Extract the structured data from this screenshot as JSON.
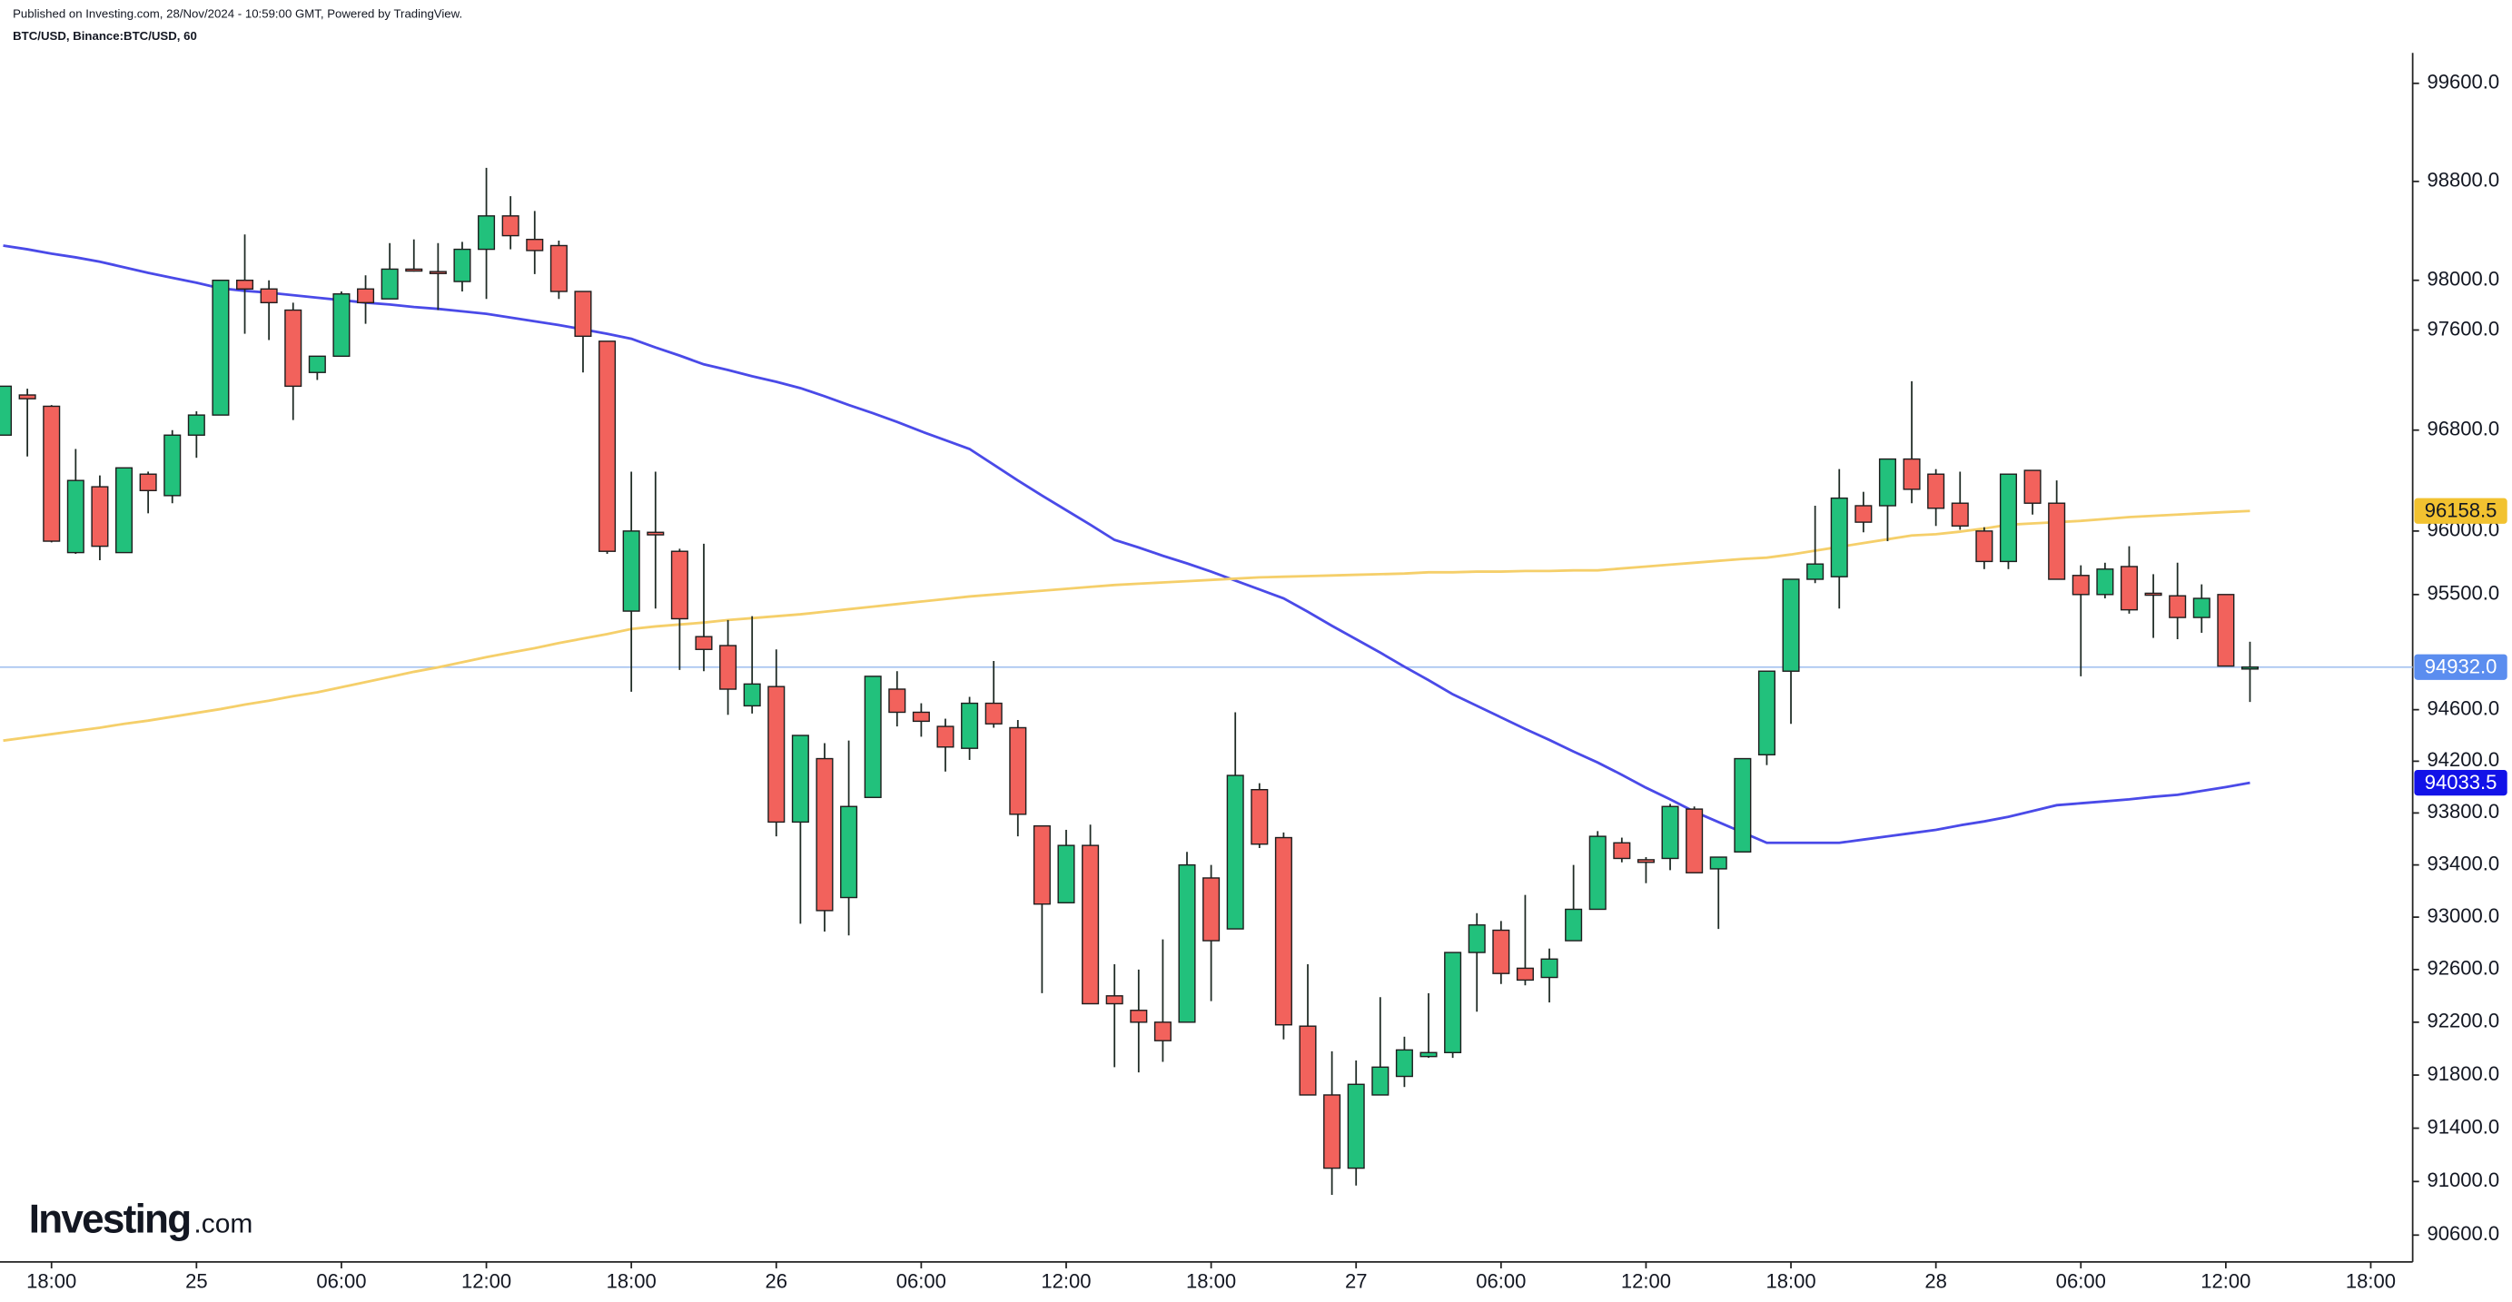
{
  "header": {
    "published": "Published on Investing.com, 28/Nov/2024 - 10:59:00 GMT, Powered by TradingView.",
    "symbol": "BTC/USD, Binance:BTC/USD, 60"
  },
  "logo": {
    "brand": "Investing",
    "suffix": ".com"
  },
  "chart_data": {
    "type": "candlestick",
    "log": true,
    "grid": false,
    "up_color": "#22c17c",
    "down_color": "#f2625c",
    "ylim": [
      90400,
      99850
    ],
    "yticks": [
      {
        "value": 90600,
        "label": "90600.0"
      },
      {
        "value": 91000,
        "label": "91000.0"
      },
      {
        "value": 91400,
        "label": "91400.0"
      },
      {
        "value": 91800,
        "label": "91800.0"
      },
      {
        "value": 92200,
        "label": "92200.0"
      },
      {
        "value": 92600,
        "label": "92600.0"
      },
      {
        "value": 93000,
        "label": "93000.0"
      },
      {
        "value": 93400,
        "label": "93400.0"
      },
      {
        "value": 93800,
        "label": "93800.0"
      },
      {
        "value": 94200,
        "label": "94200.0"
      },
      {
        "value": 94600,
        "label": "94600.0"
      },
      {
        "value": 95500,
        "label": "95500.0"
      },
      {
        "value": 96000,
        "label": "96000.0"
      },
      {
        "value": 96800,
        "label": "96800.0"
      },
      {
        "value": 97600,
        "label": "97600.0"
      },
      {
        "value": 98000,
        "label": "98000.0"
      },
      {
        "value": 98800,
        "label": "98800.0"
      },
      {
        "value": 99600,
        "label": "99600.0"
      }
    ],
    "categories": [
      null,
      null,
      "18:00",
      null,
      null,
      null,
      null,
      null,
      "25",
      null,
      null,
      null,
      null,
      null,
      "06:00",
      null,
      null,
      null,
      null,
      null,
      "12:00",
      null,
      null,
      null,
      null,
      null,
      "18:00",
      null,
      null,
      null,
      null,
      null,
      "26",
      null,
      null,
      null,
      null,
      null,
      "06:00",
      null,
      null,
      null,
      null,
      null,
      "12:00",
      null,
      null,
      null,
      null,
      null,
      "18:00",
      null,
      null,
      null,
      null,
      null,
      "27",
      null,
      null,
      null,
      null,
      null,
      "06:00",
      null,
      null,
      null,
      null,
      null,
      "12:00",
      null,
      null,
      null,
      null,
      null,
      "18:00",
      null,
      null,
      null,
      null,
      null,
      "28",
      null,
      null,
      null,
      null,
      null,
      "06:00",
      null,
      null,
      null,
      null,
      null,
      "12:00",
      null,
      null,
      null,
      null,
      null,
      "18:00"
    ],
    "open": [
      96760,
      97080,
      96990,
      95830,
      96350,
      95830,
      96450,
      96280,
      96760,
      96920,
      98000,
      97930,
      97760,
      97260,
      97390,
      97930,
      97850,
      98090,
      98070,
      97990,
      98250,
      98520,
      98330,
      98280,
      97910,
      97510,
      95370,
      95990,
      95840,
      95170,
      95100,
      94630,
      94780,
      93730,
      94220,
      93150,
      93920,
      94760,
      94580,
      94470,
      94300,
      94650,
      94460,
      93700,
      93110,
      93550,
      92400,
      92290,
      92200,
      92200,
      93300,
      92910,
      93980,
      93610,
      92170,
      91650,
      91100,
      91650,
      91790,
      91940,
      91970,
      92730,
      92900,
      92610,
      92540,
      92820,
      93060,
      93570,
      93440,
      93450,
      93830,
      93370,
      93500,
      94250,
      94900,
      95620,
      95640,
      96200,
      96200,
      96570,
      96450,
      96220,
      96000,
      95760,
      96480,
      96220,
      95650,
      95500,
      95720,
      95510,
      95490,
      95320,
      95500,
      94930,
      null,
      null,
      null,
      null,
      null
    ],
    "high": [
      97150,
      97130,
      97000,
      96650,
      96440,
      96500,
      96470,
      96800,
      96950,
      98000,
      98370,
      98000,
      97820,
      97390,
      97910,
      98040,
      98300,
      98330,
      98300,
      98310,
      98910,
      98680,
      98560,
      98320,
      97910,
      97510,
      96470,
      96470,
      95860,
      95900,
      95300,
      95330,
      95070,
      94400,
      94340,
      94360,
      94860,
      94900,
      94650,
      94530,
      94700,
      94980,
      94520,
      93700,
      93670,
      93710,
      92640,
      92600,
      92830,
      93500,
      93400,
      94580,
      94030,
      93650,
      92640,
      91980,
      91910,
      92390,
      92090,
      92420,
      92730,
      93030,
      92970,
      93170,
      92760,
      93400,
      93660,
      93610,
      93460,
      93870,
      93850,
      93460,
      94220,
      94900,
      95620,
      96200,
      96490,
      96310,
      96570,
      97190,
      96490,
      96470,
      96030,
      96450,
      96480,
      96400,
      95730,
      95750,
      95880,
      95660,
      95750,
      95580,
      95500,
      95130,
      null,
      null,
      null,
      null,
      null
    ],
    "low": [
      96760,
      96590,
      95910,
      95820,
      95770,
      95830,
      96140,
      96220,
      96580,
      96920,
      97570,
      97520,
      96880,
      97200,
      97390,
      97650,
      97850,
      98070,
      97760,
      97910,
      97850,
      98250,
      98050,
      97850,
      97260,
      95820,
      94740,
      95390,
      94910,
      94900,
      94560,
      94570,
      93620,
      92950,
      92890,
      92860,
      93920,
      94470,
      94390,
      94120,
      94210,
      94460,
      93620,
      92420,
      93110,
      92340,
      91860,
      91820,
      91900,
      92200,
      92360,
      92910,
      93530,
      92070,
      91650,
      90900,
      90970,
      91650,
      91710,
      91930,
      91930,
      92280,
      92490,
      92480,
      92350,
      92820,
      93060,
      93420,
      93260,
      93360,
      93340,
      92910,
      93500,
      94170,
      94490,
      95590,
      95390,
      95990,
      95920,
      96220,
      96040,
      96010,
      95700,
      95700,
      96130,
      95620,
      94860,
      95470,
      95350,
      95160,
      95150,
      95200,
      94940,
      94660,
      null,
      null,
      null,
      null,
      null
    ],
    "close": [
      97150,
      97050,
      95920,
      96400,
      95880,
      96500,
      96320,
      96760,
      96920,
      98000,
      97930,
      97820,
      97150,
      97390,
      97890,
      97820,
      98090,
      98080,
      98060,
      98250,
      98520,
      98360,
      98240,
      97910,
      97550,
      95840,
      96000,
      95970,
      95310,
      95070,
      94760,
      94800,
      93730,
      94400,
      93050,
      93850,
      94860,
      94580,
      94510,
      94310,
      94650,
      94490,
      93790,
      93100,
      93550,
      92340,
      92340,
      92200,
      92060,
      93400,
      92820,
      94090,
      93560,
      92180,
      91650,
      91100,
      91730,
      91860,
      91990,
      91970,
      92730,
      92940,
      92570,
      92520,
      92680,
      93060,
      93620,
      93450,
      93420,
      93850,
      93340,
      93460,
      94220,
      94900,
      95620,
      95740,
      96260,
      96070,
      96570,
      96330,
      96180,
      96040,
      95760,
      96450,
      96220,
      95620,
      95500,
      95700,
      95380,
      95500,
      95320,
      95470,
      94940,
      94932,
      null,
      null,
      null,
      null,
      null
    ],
    "lines": [
      {
        "color": "#4a4ae8",
        "values": [
          98280,
          98250,
          98215,
          98185,
          98150,
          98105,
          98060,
          98020,
          97980,
          97935,
          97915,
          97900,
          97880,
          97860,
          97840,
          97820,
          97805,
          97785,
          97770,
          97750,
          97730,
          97700,
          97670,
          97640,
          97605,
          97570,
          97530,
          97460,
          97395,
          97325,
          97280,
          97230,
          97185,
          97135,
          97070,
          97000,
          96935,
          96865,
          96790,
          96720,
          96650,
          96525,
          96400,
          96280,
          96165,
          96050,
          95930,
          95870,
          95805,
          95745,
          95680,
          95610,
          95540,
          95470,
          95365,
          95255,
          95150,
          95045,
          94935,
          94830,
          94720,
          94630,
          94540,
          94450,
          94365,
          94275,
          94190,
          94095,
          93995,
          93905,
          93810,
          93730,
          93650,
          93570,
          93570,
          93570,
          93570,
          93595,
          93620,
          93645,
          93670,
          93705,
          93735,
          93770,
          93815,
          93860,
          93875,
          93890,
          93905,
          93925,
          93940,
          93970,
          94000,
          94033.5,
          null,
          null,
          null,
          null,
          null
        ]
      },
      {
        "color": "#f5cf6a",
        "values": [
          94360,
          94385,
          94410,
          94435,
          94460,
          94490,
          94515,
          94545,
          94575,
          94605,
          94640,
          94670,
          94705,
          94735,
          94775,
          94815,
          94855,
          94895,
          94930,
          94970,
          95010,
          95045,
          95080,
          95120,
          95155,
          95190,
          95230,
          95250,
          95265,
          95280,
          95300,
          95315,
          95330,
          95345,
          95365,
          95385,
          95405,
          95425,
          95445,
          95465,
          95485,
          95500,
          95515,
          95530,
          95545,
          95560,
          95575,
          95585,
          95595,
          95605,
          95615,
          95625,
          95635,
          95640,
          95645,
          95650,
          95655,
          95660,
          95665,
          95675,
          95675,
          95680,
          95680,
          95685,
          95685,
          95690,
          95690,
          95705,
          95720,
          95735,
          95750,
          95765,
          95780,
          95790,
          95815,
          95845,
          95875,
          95905,
          95935,
          95965,
          95975,
          95995,
          96020,
          96050,
          96060,
          96070,
          96080,
          96095,
          96110,
          96120,
          96130,
          96140,
          96150,
          96158.5,
          null,
          null,
          null,
          null,
          null
        ]
      }
    ],
    "price_line": {
      "value": 94932,
      "color": "#a8c4f0"
    },
    "markers": [
      {
        "value": 96158.5,
        "label": "96158.5",
        "color": "#f2c230",
        "text_color": "#131722"
      },
      {
        "value": 94932,
        "label": "94932.0",
        "color": "#5b8def",
        "text_color": "#ffffff"
      },
      {
        "value": 94033.5,
        "label": "94033.5",
        "color": "#1212e8",
        "text_color": "#ffffff"
      }
    ]
  }
}
